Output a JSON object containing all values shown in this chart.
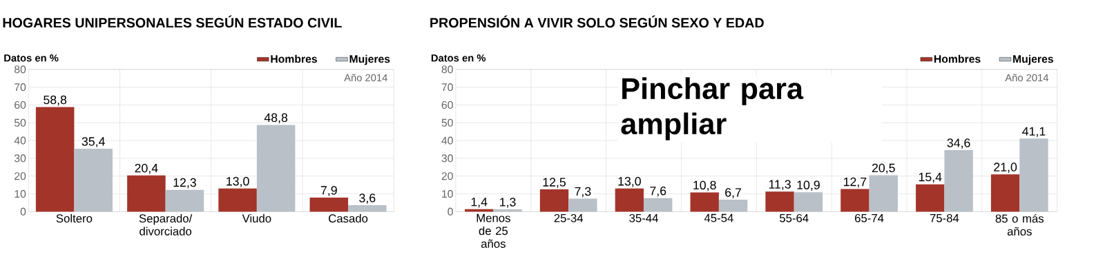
{
  "chart_data": [
    {
      "type": "bar",
      "title": "HOGARES UNIPERSONALES SEGÚN ESTADO CIVIL",
      "ylabel": "Datos en %",
      "categories": [
        "Soltero",
        "Separado/ divorciado",
        "Viudo",
        "Casado"
      ],
      "series": [
        {
          "name": "Hombres",
          "color": "#a3342a",
          "values": [
            58.8,
            20.4,
            13.0,
            7.9
          ],
          "value_labels": [
            "58,8",
            "20,4",
            "13,0",
            "7,9"
          ]
        },
        {
          "name": "Mujeres",
          "color": "#b9c0c8",
          "values": [
            35.4,
            12.3,
            48.8,
            3.6
          ],
          "value_labels": [
            "35,4",
            "12,3",
            "48,8",
            "3,6"
          ]
        }
      ],
      "ylim": [
        0,
        80
      ],
      "yticks": [
        0,
        10,
        20,
        30,
        40,
        50,
        60,
        70,
        80
      ],
      "grid": true,
      "legend": "top right",
      "annotations": [
        "Año 2014"
      ]
    },
    {
      "type": "bar",
      "title": "PROPENSIÓN A VIVIR SOLO SEGÚN SEXO Y EDAD",
      "ylabel": "Datos en %",
      "categories": [
        "Menos de 25 años",
        "25-34",
        "35-44",
        "45-54",
        "55-64",
        "65-74",
        "75-84",
        "85 o más años"
      ],
      "series": [
        {
          "name": "Hombres",
          "color": "#a3342a",
          "values": [
            1.4,
            12.5,
            13.0,
            10.8,
            11.3,
            12.7,
            15.4,
            21.0
          ],
          "value_labels": [
            "1,4",
            "12,5",
            "13,0",
            "10,8",
            "11,3",
            "12,7",
            "15,4",
            "21,0"
          ]
        },
        {
          "name": "Mujeres",
          "color": "#b9c0c8",
          "values": [
            1.3,
            7.3,
            7.6,
            6.7,
            10.9,
            20.5,
            34.6,
            41.1
          ],
          "value_labels": [
            "1,3",
            "7,3",
            "7,6",
            "6,7",
            "10,9",
            "20,5",
            "34,6",
            "41,1"
          ]
        }
      ],
      "ylim": [
        0,
        80
      ],
      "yticks": [
        0,
        10,
        20,
        30,
        40,
        50,
        60,
        70,
        80
      ],
      "grid": true,
      "legend": "top right",
      "annotations": [
        "Año 2014",
        "Pinchar para ampliar"
      ]
    }
  ]
}
